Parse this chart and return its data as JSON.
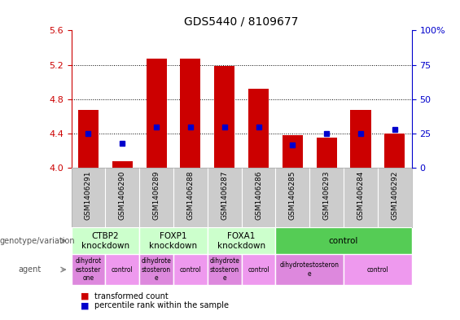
{
  "title": "GDS5440 / 8109677",
  "samples": [
    "GSM1406291",
    "GSM1406290",
    "GSM1406289",
    "GSM1406288",
    "GSM1406287",
    "GSM1406286",
    "GSM1406285",
    "GSM1406293",
    "GSM1406284",
    "GSM1406292"
  ],
  "transformed_counts": [
    4.68,
    4.08,
    5.27,
    5.27,
    5.19,
    4.92,
    4.38,
    4.35,
    4.68,
    4.4
  ],
  "percentile_ranks": [
    25,
    18,
    30,
    30,
    30,
    30,
    17,
    25,
    25,
    28
  ],
  "ylim": [
    4.0,
    5.6
  ],
  "y2lim": [
    0,
    100
  ],
  "yticks": [
    4.0,
    4.4,
    4.8,
    5.2,
    5.6
  ],
  "y2ticks": [
    0,
    25,
    50,
    75,
    100
  ],
  "bar_color": "#cc0000",
  "dot_color": "#0000cc",
  "bar_width": 0.6,
  "genotype_groups": [
    {
      "label": "CTBP2\nknockdown",
      "start": 0,
      "end": 2,
      "color": "#ccffcc"
    },
    {
      "label": "FOXP1\nknockdown",
      "start": 2,
      "end": 4,
      "color": "#ccffcc"
    },
    {
      "label": "FOXA1\nknockdown",
      "start": 4,
      "end": 6,
      "color": "#ccffcc"
    },
    {
      "label": "control",
      "start": 6,
      "end": 10,
      "color": "#55cc55"
    }
  ],
  "agent_groups": [
    {
      "label": "dihydrot\nestoster\none",
      "start": 0,
      "end": 1,
      "color": "#dd88dd"
    },
    {
      "label": "control",
      "start": 1,
      "end": 2,
      "color": "#ee99ee"
    },
    {
      "label": "dihydrote\nstosteron\ne",
      "start": 2,
      "end": 3,
      "color": "#dd88dd"
    },
    {
      "label": "control",
      "start": 3,
      "end": 4,
      "color": "#ee99ee"
    },
    {
      "label": "dihydrote\nstosteron\ne",
      "start": 4,
      "end": 5,
      "color": "#dd88dd"
    },
    {
      "label": "control",
      "start": 5,
      "end": 6,
      "color": "#ee99ee"
    },
    {
      "label": "dihydrotestosteron\ne",
      "start": 6,
      "end": 8,
      "color": "#dd88dd"
    },
    {
      "label": "control",
      "start": 8,
      "end": 10,
      "color": "#ee99ee"
    }
  ],
  "legend_red_label": "transformed count",
  "legend_blue_label": "percentile rank within the sample",
  "tick_color_left": "#cc0000",
  "tick_color_right": "#0000cc",
  "bg_color": "#ffffff",
  "sample_label_bg": "#cccccc",
  "geno_border_color": "#aaaaaa",
  "agent_border_color": "#aaaaaa"
}
